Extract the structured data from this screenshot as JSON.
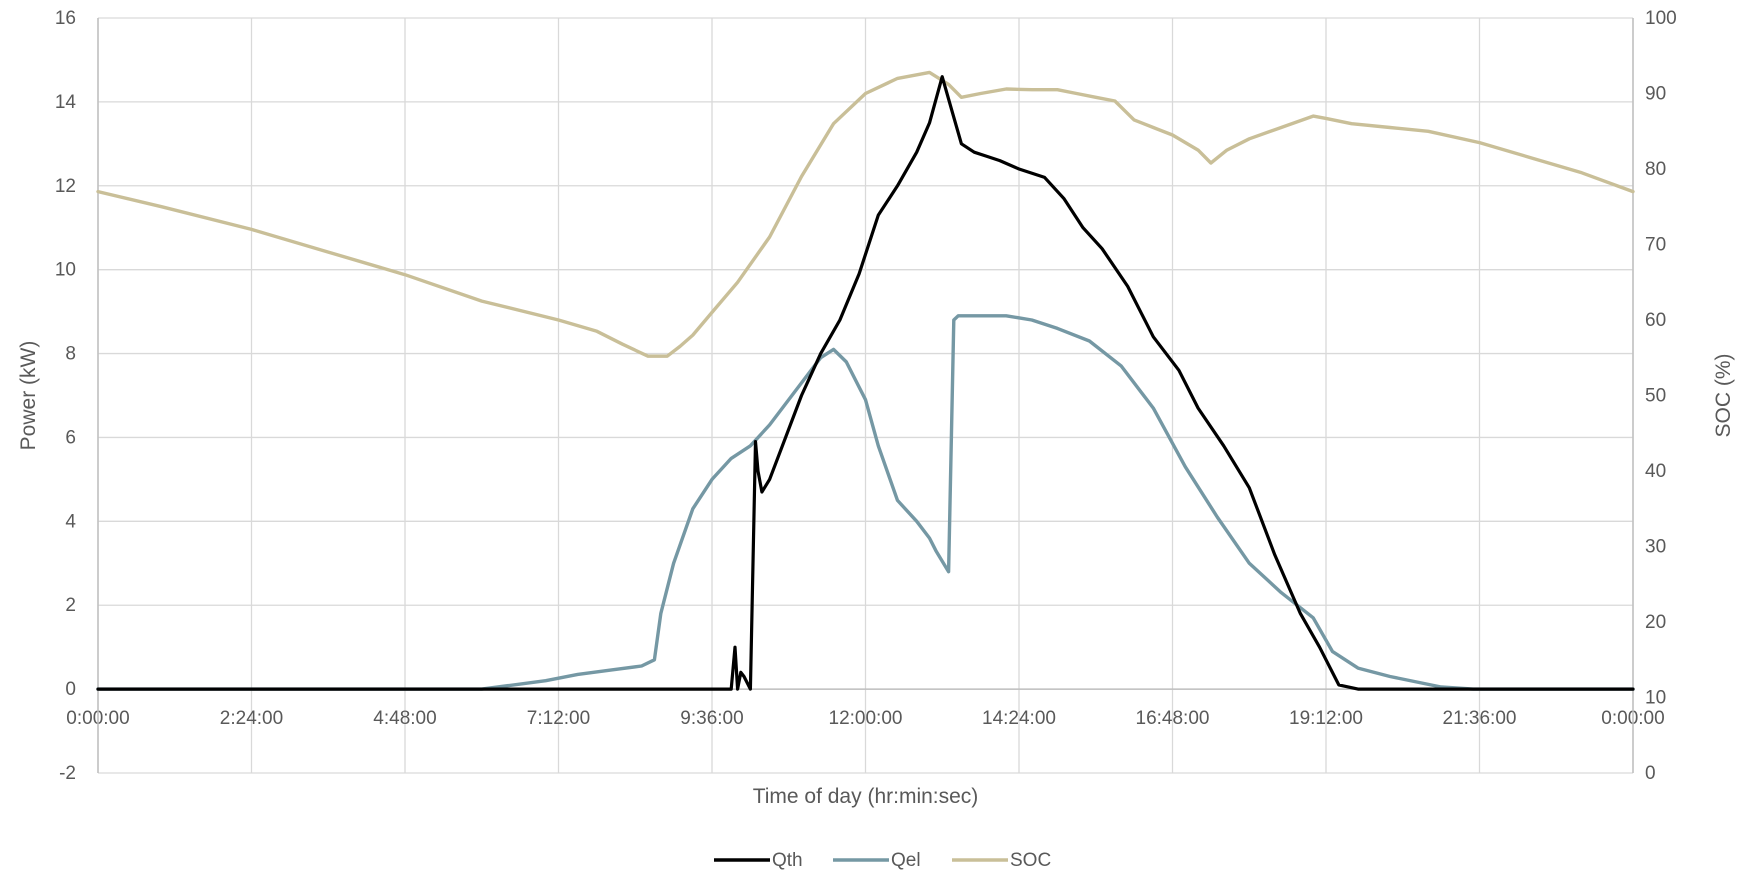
{
  "chart_data": {
    "type": "line",
    "xlabel": "Time of day (hr:min:sec)",
    "ylabel": "Power (kW)",
    "y2label": "SOC (%)",
    "x_tick_labels": [
      "0:00:00",
      "2:24:00",
      "4:48:00",
      "7:12:00",
      "9:36:00",
      "12:00:00",
      "14:24:00",
      "16:48:00",
      "19:12:00",
      "21:36:00",
      "0:00:00"
    ],
    "x_range_hours": [
      0,
      24
    ],
    "ylim": [
      -2,
      16
    ],
    "y_ticks": [
      -2,
      0,
      2,
      4,
      6,
      8,
      10,
      12,
      14,
      16
    ],
    "y2lim": [
      0,
      100
    ],
    "y2_ticks": [
      0,
      10,
      20,
      30,
      40,
      50,
      60,
      70,
      80,
      90,
      100
    ],
    "grid": true,
    "legend_position": "bottom",
    "series": [
      {
        "name": "Qth",
        "axis": "left",
        "color": "#000000",
        "x": [
          0,
          9.9,
          9.96,
          10.0,
          10.05,
          10.1,
          10.2,
          10.28,
          10.32,
          10.38,
          10.5,
          10.7,
          11.0,
          11.3,
          11.6,
          11.9,
          12.2,
          12.5,
          12.8,
          13.0,
          13.2,
          13.35,
          13.5,
          13.7,
          13.9,
          14.1,
          14.4,
          14.8,
          15.1,
          15.4,
          15.7,
          16.1,
          16.5,
          16.9,
          17.2,
          17.6,
          18.0,
          18.4,
          18.8,
          19.1,
          19.4,
          19.7,
          20.0,
          24
        ],
        "y": [
          0,
          0,
          1.0,
          0,
          0.4,
          0.3,
          0,
          5.9,
          5.2,
          4.7,
          5.0,
          5.8,
          7.0,
          8.0,
          8.8,
          9.9,
          11.3,
          12.0,
          12.8,
          13.5,
          14.6,
          13.8,
          13.0,
          12.8,
          12.7,
          12.6,
          12.4,
          12.2,
          11.7,
          11.0,
          10.5,
          9.6,
          8.4,
          7.6,
          6.7,
          5.8,
          4.8,
          3.2,
          1.8,
          1.0,
          0.1,
          0,
          0,
          0
        ]
      },
      {
        "name": "Qel",
        "axis": "left",
        "color": "#7598A4",
        "x": [
          0,
          6.0,
          7.0,
          7.5,
          8.0,
          8.5,
          8.7,
          8.8,
          9.0,
          9.3,
          9.6,
          9.9,
          10.2,
          10.5,
          11.0,
          11.3,
          11.5,
          11.7,
          12.0,
          12.2,
          12.5,
          12.8,
          13.0,
          13.1,
          13.3,
          13.38,
          13.45,
          13.8,
          14.2,
          14.6,
          15.0,
          15.5,
          16.0,
          16.5,
          17.0,
          17.5,
          18.0,
          18.5,
          19.0,
          19.3,
          19.7,
          20.2,
          21.0,
          21.5,
          24
        ],
        "y": [
          0,
          0,
          0.2,
          0.35,
          0.45,
          0.55,
          0.7,
          1.8,
          3.0,
          4.3,
          5.0,
          5.5,
          5.8,
          6.3,
          7.3,
          7.9,
          8.1,
          7.8,
          6.9,
          5.8,
          4.5,
          4.0,
          3.6,
          3.3,
          2.8,
          8.8,
          8.9,
          8.9,
          8.9,
          8.8,
          8.6,
          8.3,
          7.7,
          6.7,
          5.3,
          4.1,
          3.0,
          2.3,
          1.7,
          0.9,
          0.5,
          0.3,
          0.05,
          0,
          0
        ]
      },
      {
        "name": "SOC",
        "axis": "right",
        "color": "#C9BF98",
        "x": [
          0,
          1.0,
          2.4,
          3.6,
          4.8,
          6.0,
          7.2,
          7.8,
          8.2,
          8.6,
          8.9,
          9.1,
          9.3,
          9.6,
          10.0,
          10.5,
          11.0,
          11.5,
          12.0,
          12.5,
          13.0,
          13.3,
          13.5,
          13.8,
          14.2,
          14.6,
          15.0,
          15.3,
          15.6,
          15.9,
          16.2,
          16.5,
          16.8,
          17.2,
          17.4,
          17.65,
          18.0,
          18.5,
          19.0,
          19.2,
          19.6,
          20.2,
          20.8,
          21.6,
          22.4,
          23.2,
          24
        ],
        "y": [
          77,
          75,
          72,
          69,
          66,
          62.5,
          60,
          58.5,
          56.8,
          55.2,
          55.2,
          56.5,
          58,
          61,
          65,
          71,
          79,
          86,
          90,
          92,
          92.8,
          91.2,
          89.5,
          90,
          90.6,
          90.5,
          90.5,
          90,
          89.5,
          89,
          86.5,
          85.5,
          84.5,
          82.5,
          80.8,
          82.5,
          84,
          85.5,
          87,
          86.7,
          86,
          85.5,
          85,
          83.5,
          81.5,
          79.5,
          77
        ]
      }
    ]
  }
}
